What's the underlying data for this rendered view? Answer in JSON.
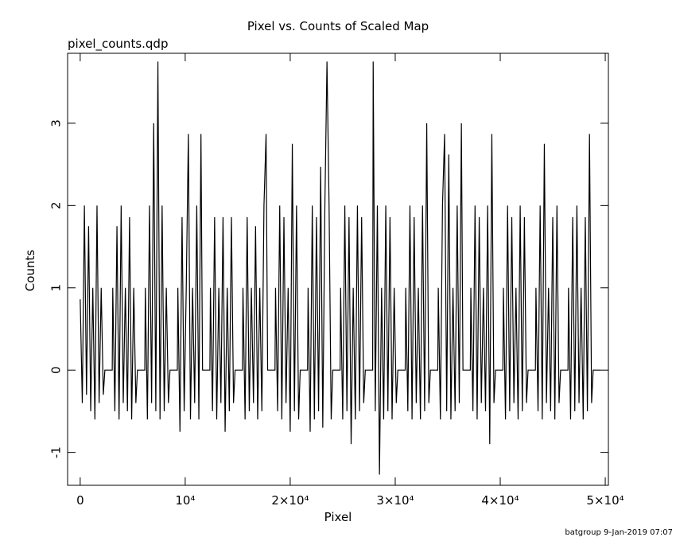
{
  "chart_data": {
    "type": "line",
    "title": "Pixel vs. Counts of Scaled Map",
    "subtitle": "pixel_counts.qdp",
    "x_label": "Pixel",
    "y_label": "Counts",
    "footer": "batgroup  9-Jan-2019 07:07",
    "color": "#000000",
    "xlim": [
      -1200,
      50300
    ],
    "ylim": [
      -1.4,
      3.85
    ],
    "xticks": [
      0,
      {
        "value": 10000,
        "label": "10⁴"
      },
      {
        "value": 20000,
        "label": "2×10⁴"
      },
      {
        "value": 30000,
        "label": "3×10⁴"
      },
      {
        "value": 40000,
        "label": "4×10⁴"
      },
      {
        "value": 50000,
        "label": "5×10⁴"
      }
    ],
    "yticks": [
      -1,
      0,
      1,
      2,
      3
    ],
    "x": [
      0,
      200,
      400,
      600,
      800,
      1000,
      1200,
      1400,
      1600,
      1800,
      2000,
      2200,
      2350,
      3050,
      3100,
      3300,
      3500,
      3700,
      3900,
      4100,
      4300,
      4500,
      4700,
      4900,
      5100,
      5300,
      5450,
      6150,
      6200,
      6400,
      6600,
      6800,
      7000,
      7200,
      7400,
      7600,
      7800,
      8000,
      8200,
      8400,
      8550,
      9250,
      9300,
      9500,
      9700,
      9900,
      10100,
      10300,
      10500,
      10700,
      10900,
      11100,
      11300,
      11500,
      11650,
      12350,
      12400,
      12600,
      12800,
      13000,
      13200,
      13400,
      13600,
      13800,
      14000,
      14200,
      14400,
      14600,
      14750,
      15450,
      15500,
      15700,
      15900,
      16100,
      16300,
      16500,
      16700,
      16900,
      17100,
      17300,
      17500,
      17700,
      17850,
      18550,
      18600,
      18800,
      19000,
      19200,
      19400,
      19600,
      19800,
      20000,
      20200,
      20400,
      20600,
      20800,
      20950,
      21650,
      21700,
      21900,
      22100,
      22300,
      22500,
      22700,
      22900,
      23100,
      23300,
      23500,
      23700,
      23900,
      24050,
      24750,
      24800,
      25000,
      25200,
      25400,
      25600,
      25800,
      26000,
      26200,
      26400,
      26600,
      26800,
      27000,
      27150,
      27850,
      27900,
      28100,
      28300,
      28500,
      28700,
      28900,
      29100,
      29300,
      29500,
      29700,
      29900,
      30100,
      30250,
      30950,
      31000,
      31200,
      31400,
      31600,
      31800,
      32000,
      32200,
      32400,
      32600,
      32800,
      33000,
      33200,
      33350,
      34050,
      34100,
      34300,
      34500,
      34700,
      34900,
      35100,
      35300,
      35500,
      35700,
      35900,
      36100,
      36300,
      36450,
      37150,
      37200,
      37400,
      37600,
      37800,
      38000,
      38200,
      38400,
      38600,
      38800,
      39000,
      39200,
      39400,
      39550,
      40250,
      40300,
      40500,
      40700,
      40900,
      41100,
      41300,
      41500,
      41700,
      41900,
      42100,
      42300,
      42500,
      42650,
      43350,
      43400,
      43600,
      43800,
      44000,
      44200,
      44400,
      44600,
      44800,
      45000,
      45200,
      45400,
      45600,
      45750,
      46450,
      46500,
      46700,
      46900,
      47100,
      47300,
      47500,
      47700,
      47900,
      48100,
      48300,
      48500,
      48700,
      48850,
      49550
    ],
    "values": [
      0.86,
      -0.4,
      2,
      -0.3,
      1.75,
      -0.5,
      1,
      -0.6,
      2,
      -0.4,
      1,
      -0.3,
      0,
      0,
      1,
      -0.5,
      1.75,
      -0.6,
      2,
      -0.4,
      1,
      -0.5,
      1.86,
      -0.6,
      1,
      -0.4,
      0,
      0,
      1,
      -0.6,
      2,
      -0.4,
      3,
      -0.5,
      3.75,
      -0.6,
      2,
      -0.5,
      1,
      -0.4,
      0,
      0,
      1,
      -0.75,
      1.86,
      -0.5,
      1,
      2.87,
      -0.6,
      1,
      -0.4,
      2,
      -0.6,
      2.87,
      0,
      0,
      1,
      -0.5,
      1.86,
      -0.6,
      1,
      -0.4,
      1.86,
      -0.75,
      1,
      -0.5,
      1.86,
      -0.4,
      0,
      0,
      1,
      -0.6,
      1.86,
      -0.5,
      1,
      -0.4,
      1.75,
      -0.6,
      1,
      -0.5,
      2,
      2.87,
      0,
      0,
      1,
      -0.5,
      2,
      -0.6,
      1.86,
      -0.4,
      1,
      -0.75,
      2.75,
      -0.5,
      2,
      -0.6,
      0,
      0,
      1,
      -0.75,
      2,
      -0.6,
      1.86,
      -0.5,
      2.47,
      -0.7,
      2,
      3.75,
      2,
      -0.6,
      0,
      0,
      1,
      -0.6,
      2,
      -0.5,
      1.86,
      -0.9,
      1,
      -0.6,
      2,
      -0.5,
      1.86,
      -0.4,
      0,
      0,
      3.75,
      -0.5,
      2,
      -1.27,
      1,
      -0.6,
      2,
      -0.5,
      1.86,
      -0.6,
      1,
      -0.4,
      0,
      0,
      1,
      -0.5,
      2,
      -0.6,
      1.86,
      -0.4,
      1,
      -0.6,
      2,
      -0.5,
      3,
      -0.4,
      0,
      0,
      1,
      -0.6,
      2,
      2.87,
      -0.5,
      2.62,
      -0.6,
      1,
      -0.5,
      2,
      -0.4,
      3,
      0,
      0,
      1,
      -0.5,
      2,
      -0.6,
      1.86,
      -0.4,
      1,
      -0.5,
      2,
      -0.9,
      2.87,
      -0.4,
      0,
      0,
      1,
      -0.6,
      2,
      -0.5,
      1.86,
      -0.4,
      1,
      -0.6,
      2,
      -0.5,
      1.86,
      -0.4,
      0,
      0,
      1,
      -0.5,
      2,
      -0.6,
      2.75,
      -0.4,
      1,
      -0.5,
      1.86,
      -0.6,
      2,
      -0.4,
      0,
      0,
      1,
      -0.6,
      1.86,
      -0.5,
      2,
      -0.4,
      1,
      -0.6,
      1.86,
      -0.5,
      2.87,
      -0.4,
      0,
      0
    ]
  }
}
